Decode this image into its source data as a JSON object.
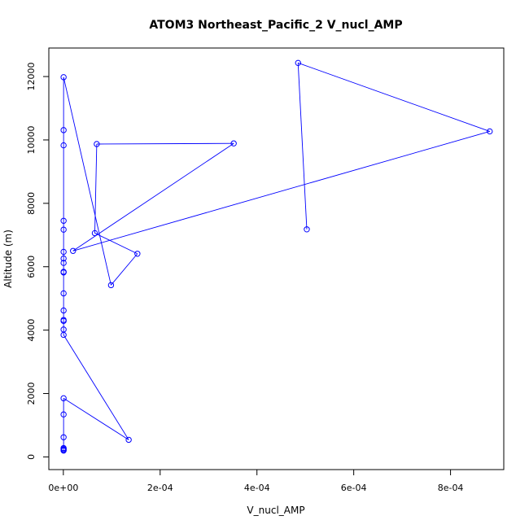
{
  "chart_data": {
    "type": "line",
    "title": "ATOM3 Northeast_Pacific_2 V_nucl_AMP",
    "xlabel": "V_nucl_AMP",
    "ylabel": "Altitude (m)",
    "xlim": [
      -3e-05,
      0.00091
    ],
    "ylim": [
      -400,
      12900
    ],
    "x_ticks": [
      0,
      0.0002,
      0.0004,
      0.0006,
      0.0008
    ],
    "x_tick_labels": [
      "0e+00",
      "2e-04",
      "4e-04",
      "6e-04",
      "8e-04"
    ],
    "y_ticks": [
      0,
      2000,
      4000,
      6000,
      8000,
      10000,
      12000
    ],
    "y_tick_labels": [
      "0",
      "2000",
      "4000",
      "6000",
      "8000",
      "10000",
      "12000"
    ],
    "grid": false,
    "series": [
      {
        "color": "#0000ff",
        "marker": "open-circle",
        "points": [
          {
            "x": 5e-07,
            "y": 200
          },
          {
            "x": 5e-07,
            "y": 220
          },
          {
            "x": 5e-07,
            "y": 250
          },
          {
            "x": 5e-07,
            "y": 280
          },
          {
            "x": 5e-07,
            "y": 620
          },
          {
            "x": 5e-07,
            "y": 1340
          },
          {
            "x": 5e-07,
            "y": 1850
          },
          {
            "x": 0.000135,
            "y": 540
          },
          {
            "x": 5e-07,
            "y": 3850
          },
          {
            "x": 5e-07,
            "y": 4020
          },
          {
            "x": 5e-07,
            "y": 4290
          },
          {
            "x": 5e-07,
            "y": 4320
          },
          {
            "x": 5e-07,
            "y": 4620
          },
          {
            "x": 5e-07,
            "y": 5160
          },
          {
            "x": 5e-07,
            "y": 5820
          },
          {
            "x": 5e-07,
            "y": 5840
          },
          {
            "x": 5e-07,
            "y": 6120
          },
          {
            "x": 5e-07,
            "y": 6260
          },
          {
            "x": 5e-07,
            "y": 6470
          },
          {
            "x": 5e-07,
            "y": 7170
          },
          {
            "x": 5e-07,
            "y": 7450
          },
          {
            "x": 5e-07,
            "y": 9830
          },
          {
            "x": 5e-07,
            "y": 10310
          },
          {
            "x": 5e-07,
            "y": 11980
          },
          {
            "x": 9.85e-05,
            "y": 5420
          },
          {
            "x": 0.000153,
            "y": 6410
          },
          {
            "x": 6.5e-05,
            "y": 7060
          },
          {
            "x": 6.9e-05,
            "y": 9870
          },
          {
            "x": 0.000352,
            "y": 9890
          },
          {
            "x": 2e-05,
            "y": 6500
          },
          {
            "x": 0.000881,
            "y": 10270
          },
          {
            "x": 0.000485,
            "y": 12430
          },
          {
            "x": 0.000503,
            "y": 7180
          }
        ]
      }
    ]
  }
}
